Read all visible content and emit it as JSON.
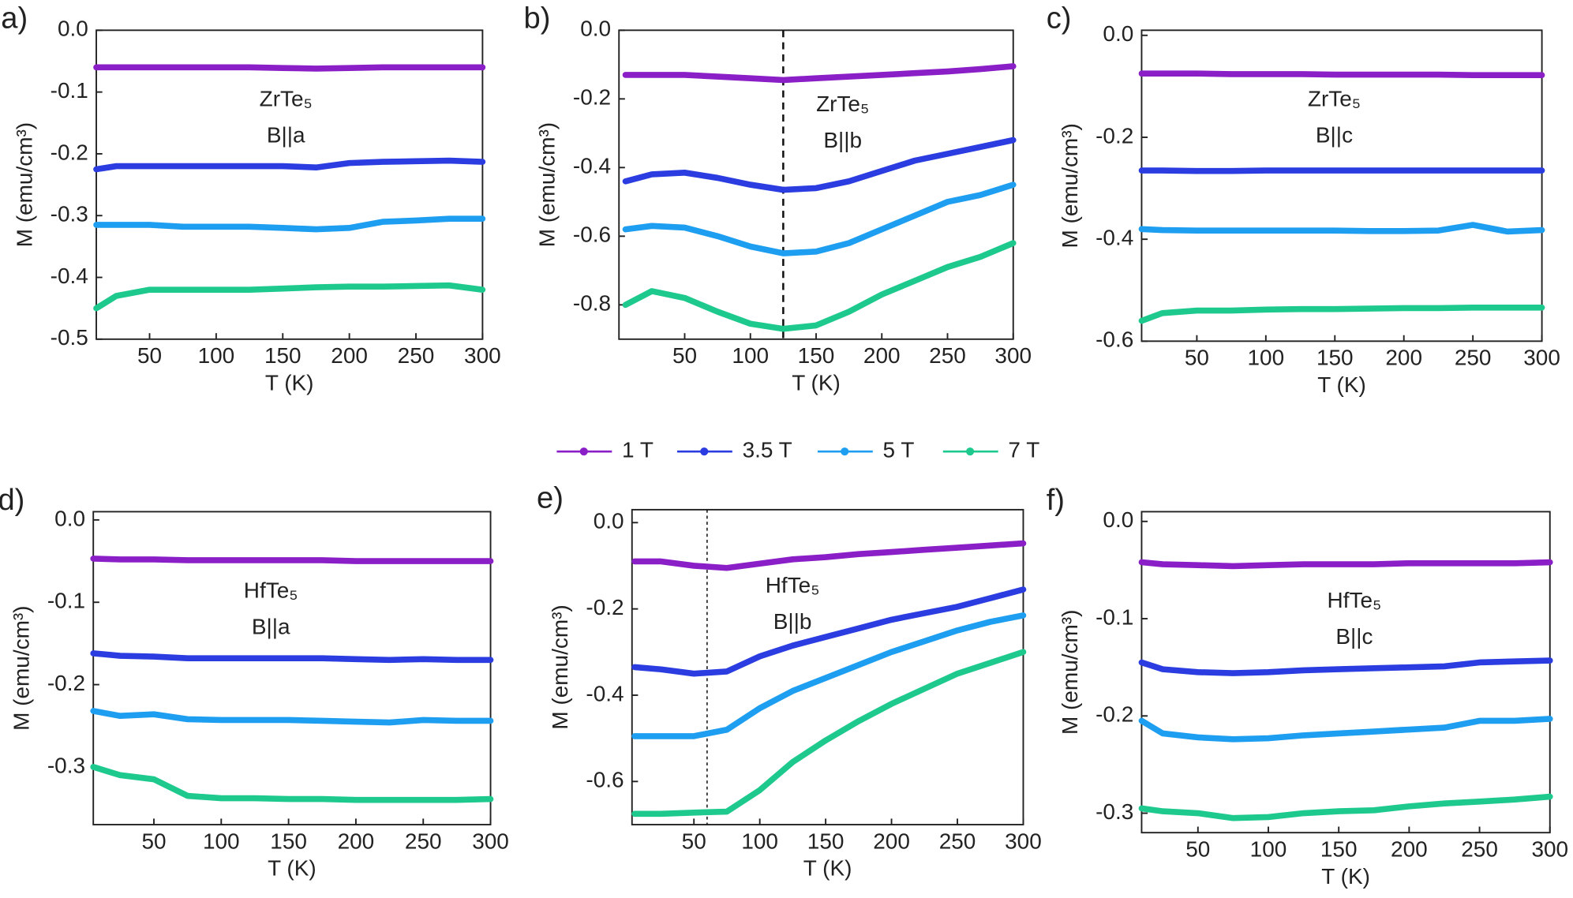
{
  "chart_data": [
    {
      "type": "line",
      "panel": "a)",
      "annotations": [
        "ZrTe₅",
        "B||a"
      ],
      "xlabel": "T (K)",
      "ylabel": "M (emu/cm³)",
      "x": [
        10,
        25,
        50,
        75,
        100,
        125,
        150,
        175,
        200,
        225,
        250,
        275,
        300
      ],
      "xlim": [
        10,
        300
      ],
      "xticks": [
        50,
        100,
        150,
        200,
        250,
        300
      ],
      "ylim": [
        -0.5,
        0
      ],
      "yticks": [
        {
          "value": 0,
          "label": "0.0"
        },
        -0.1,
        -0.2,
        -0.3,
        -0.4,
        -0.5
      ],
      "series": [
        {
          "name": "1 T",
          "color": "#8a1fc7",
          "values": [
            -0.06,
            -0.06,
            -0.06,
            -0.06,
            -0.06,
            -0.06,
            -0.061,
            -0.062,
            -0.061,
            -0.06,
            -0.06,
            -0.06,
            -0.06
          ]
        },
        {
          "name": "3.5 T",
          "color": "#2b3de0",
          "values": [
            -0.225,
            -0.22,
            -0.22,
            -0.22,
            -0.22,
            -0.22,
            -0.22,
            -0.222,
            -0.215,
            -0.213,
            -0.212,
            -0.211,
            -0.213
          ]
        },
        {
          "name": "5 T",
          "color": "#1e9ef0",
          "values": [
            -0.315,
            -0.315,
            -0.315,
            -0.318,
            -0.318,
            -0.318,
            -0.32,
            -0.322,
            -0.32,
            -0.31,
            -0.308,
            -0.305,
            -0.305
          ]
        },
        {
          "name": "7 T",
          "color": "#1ec98e",
          "values": [
            -0.45,
            -0.43,
            -0.42,
            -0.42,
            -0.42,
            -0.42,
            -0.418,
            -0.416,
            -0.415,
            -0.415,
            -0.414,
            -0.413,
            -0.42
          ]
        }
      ]
    },
    {
      "type": "line",
      "panel": "b)",
      "annotations": [
        "ZrTe₅",
        "B||b"
      ],
      "xlabel": "T (K)",
      "ylabel": "M (emu/cm³)",
      "x": [
        5,
        25,
        50,
        75,
        100,
        125,
        150,
        175,
        200,
        225,
        250,
        275,
        300
      ],
      "xlim": [
        0,
        300
      ],
      "xticks": [
        50,
        100,
        150,
        200,
        250,
        300
      ],
      "ylim": [
        -0.9,
        0
      ],
      "yticks": [
        {
          "value": 0,
          "label": "0.0"
        },
        -0.2,
        -0.4,
        -0.6,
        -0.8
      ],
      "vline": 125,
      "series": [
        {
          "name": "1 T",
          "color": "#8a1fc7",
          "values": [
            -0.13,
            -0.13,
            -0.13,
            -0.135,
            -0.14,
            -0.145,
            -0.14,
            -0.135,
            -0.13,
            -0.125,
            -0.12,
            -0.113,
            -0.105
          ]
        },
        {
          "name": "3.5 T",
          "color": "#2b3de0",
          "values": [
            -0.44,
            -0.42,
            -0.415,
            -0.43,
            -0.45,
            -0.465,
            -0.46,
            -0.44,
            -0.41,
            -0.38,
            -0.36,
            -0.34,
            -0.32
          ]
        },
        {
          "name": "5 T",
          "color": "#1e9ef0",
          "values": [
            -0.58,
            -0.57,
            -0.575,
            -0.6,
            -0.63,
            -0.65,
            -0.645,
            -0.62,
            -0.58,
            -0.54,
            -0.5,
            -0.48,
            -0.45
          ]
        },
        {
          "name": "7 T",
          "color": "#1ec98e",
          "values": [
            -0.8,
            -0.76,
            -0.78,
            -0.82,
            -0.855,
            -0.87,
            -0.86,
            -0.82,
            -0.77,
            -0.73,
            -0.69,
            -0.66,
            -0.62
          ]
        }
      ]
    },
    {
      "type": "line",
      "panel": "c)",
      "annotations": [
        "ZrTe₅",
        "B||c"
      ],
      "xlabel": "T (K)",
      "ylabel": "M (emu/cm³)",
      "x": [
        10,
        25,
        50,
        75,
        100,
        125,
        150,
        175,
        200,
        225,
        250,
        275,
        300
      ],
      "xlim": [
        10,
        300
      ],
      "xticks": [
        50,
        100,
        150,
        200,
        250,
        300
      ],
      "ylim": [
        -0.6,
        0.01
      ],
      "yticks": [
        {
          "value": 0,
          "label": "0.0"
        },
        -0.2,
        -0.4,
        -0.6
      ],
      "series": [
        {
          "name": "1 T",
          "color": "#8a1fc7",
          "values": [
            -0.075,
            -0.075,
            -0.075,
            -0.076,
            -0.076,
            -0.076,
            -0.077,
            -0.077,
            -0.077,
            -0.077,
            -0.078,
            -0.078,
            -0.078
          ]
        },
        {
          "name": "3.5 T",
          "color": "#2b3de0",
          "values": [
            -0.265,
            -0.265,
            -0.266,
            -0.266,
            -0.265,
            -0.265,
            -0.265,
            -0.265,
            -0.265,
            -0.265,
            -0.265,
            -0.265,
            -0.265
          ]
        },
        {
          "name": "5 T",
          "color": "#1e9ef0",
          "values": [
            -0.38,
            -0.382,
            -0.383,
            -0.383,
            -0.383,
            -0.383,
            -0.383,
            -0.384,
            -0.384,
            -0.383,
            -0.372,
            -0.385,
            -0.382
          ]
        },
        {
          "name": "7 T",
          "color": "#1ec98e",
          "values": [
            -0.56,
            -0.545,
            -0.54,
            -0.54,
            -0.538,
            -0.537,
            -0.537,
            -0.536,
            -0.535,
            -0.535,
            -0.534,
            -0.534,
            -0.534
          ]
        }
      ]
    },
    {
      "type": "line",
      "panel": "d)",
      "annotations": [
        "HfTe₅",
        "B||a"
      ],
      "xlabel": "T (K)",
      "ylabel": "M (emu/cm³)",
      "x": [
        5,
        25,
        50,
        75,
        100,
        125,
        150,
        175,
        200,
        225,
        250,
        275,
        300
      ],
      "xlim": [
        5,
        300
      ],
      "xticks": [
        50,
        100,
        150,
        200,
        250,
        300
      ],
      "ylim": [
        -0.37,
        0.01
      ],
      "yticks": [
        {
          "value": 0,
          "label": "0.0"
        },
        -0.1,
        -0.2,
        -0.3
      ],
      "series": [
        {
          "name": "1 T",
          "color": "#8a1fc7",
          "values": [
            -0.047,
            -0.048,
            -0.048,
            -0.049,
            -0.049,
            -0.049,
            -0.049,
            -0.049,
            -0.05,
            -0.05,
            -0.05,
            -0.05,
            -0.05
          ]
        },
        {
          "name": "3.5 T",
          "color": "#2b3de0",
          "values": [
            -0.162,
            -0.165,
            -0.166,
            -0.168,
            -0.168,
            -0.168,
            -0.168,
            -0.168,
            -0.169,
            -0.17,
            -0.169,
            -0.17,
            -0.17
          ]
        },
        {
          "name": "5 T",
          "color": "#1e9ef0",
          "values": [
            -0.232,
            -0.238,
            -0.236,
            -0.242,
            -0.243,
            -0.243,
            -0.243,
            -0.244,
            -0.245,
            -0.246,
            -0.243,
            -0.244,
            -0.244
          ]
        },
        {
          "name": "7 T",
          "color": "#1ec98e",
          "values": [
            -0.3,
            -0.31,
            -0.315,
            -0.335,
            -0.338,
            -0.338,
            -0.339,
            -0.339,
            -0.34,
            -0.34,
            -0.34,
            -0.34,
            -0.339
          ]
        }
      ]
    },
    {
      "type": "line",
      "panel": "e)",
      "annotations": [
        "HfTe₅",
        "B||b"
      ],
      "xlabel": "T (K)",
      "ylabel": "M (emu/cm³)",
      "x": [
        5,
        25,
        50,
        75,
        100,
        125,
        150,
        175,
        200,
        225,
        250,
        275,
        300
      ],
      "xlim": [
        3,
        300
      ],
      "xticks": [
        50,
        100,
        150,
        200,
        250,
        300
      ],
      "ylim": [
        -0.7,
        0.03
      ],
      "yticks": [
        {
          "value": 0,
          "label": "0.0"
        },
        -0.2,
        -0.4,
        -0.6
      ],
      "vline": 60,
      "series": [
        {
          "name": "1 T",
          "color": "#8a1fc7",
          "values": [
            -0.09,
            -0.09,
            -0.1,
            -0.105,
            -0.095,
            -0.085,
            -0.08,
            -0.073,
            -0.068,
            -0.063,
            -0.058,
            -0.053,
            -0.048
          ]
        },
        {
          "name": "3.5 T",
          "color": "#2b3de0",
          "values": [
            -0.335,
            -0.34,
            -0.35,
            -0.345,
            -0.31,
            -0.285,
            -0.265,
            -0.245,
            -0.225,
            -0.21,
            -0.195,
            -0.175,
            -0.155
          ]
        },
        {
          "name": "5 T",
          "color": "#1e9ef0",
          "values": [
            -0.495,
            -0.495,
            -0.495,
            -0.48,
            -0.43,
            -0.39,
            -0.36,
            -0.33,
            -0.3,
            -0.275,
            -0.25,
            -0.23,
            -0.215
          ]
        },
        {
          "name": "7 T",
          "color": "#1ec98e",
          "values": [
            -0.675,
            -0.675,
            -0.672,
            -0.67,
            -0.62,
            -0.555,
            -0.505,
            -0.46,
            -0.42,
            -0.385,
            -0.35,
            -0.325,
            -0.3
          ]
        }
      ]
    },
    {
      "type": "line",
      "panel": "f)",
      "annotations": [
        "HfTe₅",
        "B||c"
      ],
      "xlabel": "T (K)",
      "ylabel": "M (emu/cm³)",
      "x": [
        10,
        25,
        50,
        75,
        100,
        125,
        150,
        175,
        200,
        225,
        250,
        275,
        300
      ],
      "xlim": [
        10,
        300
      ],
      "xticks": [
        50,
        100,
        150,
        200,
        250,
        300
      ],
      "ylim": [
        -0.32,
        0.01
      ],
      "yticks": [
        {
          "value": 0,
          "label": "0.0"
        },
        -0.1,
        -0.2,
        -0.3
      ],
      "series": [
        {
          "name": "1 T",
          "color": "#8a1fc7",
          "values": [
            -0.042,
            -0.044,
            -0.045,
            -0.046,
            -0.045,
            -0.044,
            -0.044,
            -0.044,
            -0.043,
            -0.043,
            -0.043,
            -0.043,
            -0.042
          ]
        },
        {
          "name": "3.5 T",
          "color": "#2b3de0",
          "values": [
            -0.145,
            -0.152,
            -0.155,
            -0.156,
            -0.155,
            -0.153,
            -0.152,
            -0.151,
            -0.15,
            -0.149,
            -0.145,
            -0.144,
            -0.143
          ]
        },
        {
          "name": "5 T",
          "color": "#1e9ef0",
          "values": [
            -0.205,
            -0.218,
            -0.222,
            -0.224,
            -0.223,
            -0.22,
            -0.218,
            -0.216,
            -0.214,
            -0.212,
            -0.205,
            -0.205,
            -0.203
          ]
        },
        {
          "name": "7 T",
          "color": "#1ec98e",
          "values": [
            -0.295,
            -0.298,
            -0.3,
            -0.305,
            -0.304,
            -0.3,
            -0.298,
            -0.297,
            -0.293,
            -0.29,
            -0.288,
            -0.286,
            -0.283
          ]
        }
      ]
    }
  ]
}
